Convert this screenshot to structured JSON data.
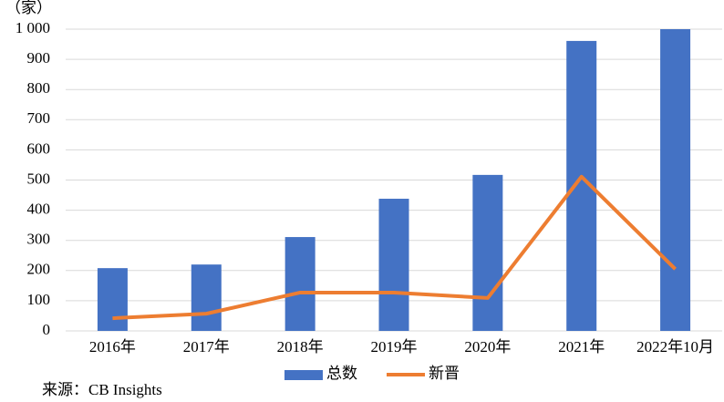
{
  "chart_data": {
    "type": "combo",
    "y_label": "（家）",
    "source": "来源：CB Insights",
    "categories": [
      "2016年",
      "2017年",
      "2018年",
      "2019年",
      "2020年",
      "2021年",
      "2022年10月"
    ],
    "series": [
      {
        "name": "总数",
        "type": "bar",
        "color": "#4472c4",
        "values": [
          208,
          220,
          311,
          438,
          517,
          961,
          1000
        ]
      },
      {
        "name": "新晋",
        "type": "line",
        "color": "#ed7d31",
        "values": [
          42,
          57,
          127,
          127,
          109,
          511,
          205
        ]
      }
    ],
    "ylim": [
      0,
      1000
    ],
    "yticks": [
      0,
      100,
      200,
      300,
      400,
      500,
      600,
      700,
      800,
      900,
      {
        "value": 1000,
        "label": "1 000"
      }
    ],
    "grid": true
  }
}
